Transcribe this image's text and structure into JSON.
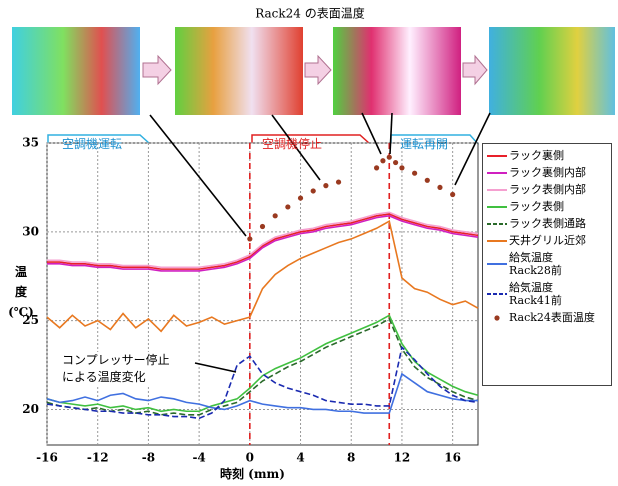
{
  "chart_data": {
    "type": "line",
    "title": "Rack24 の表面温度",
    "xlabel": "時刻 (mm)",
    "ylabel": "温\n度\n(℃)",
    "xlim": [
      -16,
      18
    ],
    "ylim": [
      18,
      35
    ],
    "xticks": [
      -16,
      -12,
      -8,
      -4,
      0,
      4,
      8,
      12,
      16
    ],
    "yticks": [
      20,
      25,
      30,
      35
    ],
    "grid": true,
    "vlines": [
      0,
      11
    ],
    "vline_color": "#e02020",
    "annotations": [
      "空調機運転",
      "空調機停止",
      "運転再開",
      "コンプレッサー停止\nによる温度変化"
    ],
    "x": [
      -16,
      -15,
      -14,
      -13,
      -12,
      -11,
      -10,
      -9,
      -8,
      -7,
      -6,
      -5,
      -4,
      -3,
      -2,
      -1,
      0,
      1,
      2,
      3,
      4,
      5,
      6,
      7,
      8,
      9,
      10,
      11,
      12,
      13,
      14,
      15,
      16,
      17,
      18
    ],
    "series": [
      {
        "name": "ラック裏側",
        "color": "#e8202a",
        "values": [
          28.3,
          28.3,
          28.2,
          28.2,
          28.1,
          28.1,
          28.0,
          28.0,
          28.0,
          27.9,
          27.9,
          27.9,
          27.9,
          28.0,
          28.1,
          28.3,
          28.6,
          29.2,
          29.6,
          29.8,
          30.0,
          30.1,
          30.3,
          30.4,
          30.5,
          30.7,
          30.9,
          31.0,
          30.7,
          30.5,
          30.3,
          30.2,
          30.0,
          29.9,
          29.8
        ]
      },
      {
        "name": "ラック裏側内部",
        "color": "#d020c0",
        "values": [
          28.2,
          28.2,
          28.1,
          28.1,
          28.0,
          28.0,
          27.9,
          27.9,
          27.9,
          27.8,
          27.8,
          27.8,
          27.8,
          27.9,
          28.0,
          28.2,
          28.5,
          29.1,
          29.5,
          29.7,
          29.9,
          30.0,
          30.2,
          30.3,
          30.4,
          30.6,
          30.8,
          30.9,
          30.6,
          30.4,
          30.2,
          30.1,
          29.9,
          29.8,
          29.7
        ]
      },
      {
        "name": "ラック表側内部",
        "color": "#f5a0d0",
        "values": [
          28.4,
          28.4,
          28.3,
          28.3,
          28.2,
          28.2,
          28.1,
          28.1,
          28.1,
          28.0,
          28.0,
          28.0,
          28.0,
          28.1,
          28.2,
          28.4,
          28.7,
          29.3,
          29.7,
          29.9,
          30.1,
          30.2,
          30.4,
          30.5,
          30.6,
          30.8,
          31.0,
          31.1,
          30.8,
          30.6,
          30.4,
          30.3,
          30.1,
          30.0,
          29.9
        ]
      },
      {
        "name": "ラック表側",
        "color": "#40c040",
        "values": [
          20.6,
          20.4,
          20.3,
          20.2,
          20.3,
          20.1,
          20.2,
          20.0,
          20.1,
          19.9,
          20.0,
          19.9,
          19.9,
          20.2,
          20.4,
          20.6,
          21.2,
          21.9,
          22.3,
          22.6,
          22.9,
          23.3,
          23.7,
          24.0,
          24.3,
          24.6,
          24.9,
          25.3,
          23.7,
          22.7,
          22.1,
          21.7,
          21.3,
          21.0,
          20.8
        ]
      },
      {
        "name": "ラック表側通路",
        "color": "#2a6a2a",
        "dashed": true,
        "values": [
          20.4,
          20.2,
          20.1,
          20.0,
          20.1,
          19.9,
          20.0,
          19.8,
          19.9,
          19.7,
          19.8,
          19.7,
          19.7,
          20.0,
          20.2,
          20.4,
          21.0,
          21.6,
          22.0,
          22.4,
          22.7,
          23.1,
          23.5,
          23.8,
          24.1,
          24.4,
          24.7,
          25.1,
          23.4,
          22.4,
          21.8,
          21.4,
          21.0,
          20.7,
          20.5
        ]
      },
      {
        "name": "天井グリル近郊",
        "color": "#e87820",
        "values": [
          25.2,
          24.6,
          25.3,
          24.7,
          25.0,
          24.5,
          25.4,
          24.6,
          25.1,
          24.4,
          25.3,
          24.7,
          24.9,
          25.2,
          24.8,
          25.0,
          25.2,
          26.8,
          27.6,
          28.1,
          28.5,
          28.8,
          29.1,
          29.4,
          29.6,
          29.9,
          30.2,
          30.6,
          27.4,
          26.8,
          26.6,
          26.2,
          25.9,
          26.1,
          25.7
        ]
      },
      {
        "name": "給気温度\nRack28前",
        "color": "#4070e0",
        "values": [
          20.6,
          20.4,
          20.5,
          20.7,
          20.5,
          20.8,
          20.9,
          20.6,
          20.5,
          20.7,
          20.6,
          20.4,
          20.3,
          20.1,
          20.0,
          20.2,
          20.5,
          20.3,
          20.2,
          20.1,
          20.1,
          20.0,
          20.0,
          19.9,
          19.9,
          19.8,
          19.8,
          19.8,
          22.0,
          21.5,
          21.0,
          20.8,
          20.6,
          20.5,
          20.5
        ]
      },
      {
        "name": "給気温度\nRack41前",
        "color": "#1a2ab0",
        "dashed": true,
        "values": [
          20.3,
          20.2,
          20.1,
          20.0,
          19.9,
          19.9,
          19.8,
          19.8,
          19.7,
          19.7,
          19.6,
          19.6,
          19.5,
          19.8,
          20.5,
          22.5,
          23.0,
          22.0,
          21.5,
          21.2,
          21.0,
          20.8,
          20.5,
          20.4,
          20.3,
          20.3,
          20.2,
          20.2,
          23.5,
          22.8,
          22.0,
          21.3,
          20.8,
          20.5,
          20.4
        ]
      },
      {
        "name": "Rack24表面温度",
        "color": "#9a3a20",
        "type": "scatter",
        "x": [
          0,
          1,
          2,
          3,
          4,
          5,
          6,
          7,
          10,
          10.5,
          11,
          11.5,
          12,
          13,
          14,
          15,
          16
        ],
        "values": [
          29.6,
          30.3,
          30.9,
          31.4,
          31.9,
          32.3,
          32.6,
          32.8,
          33.6,
          34.0,
          34.2,
          33.9,
          33.6,
          33.3,
          32.9,
          32.5,
          32.1
        ]
      }
    ]
  }
}
